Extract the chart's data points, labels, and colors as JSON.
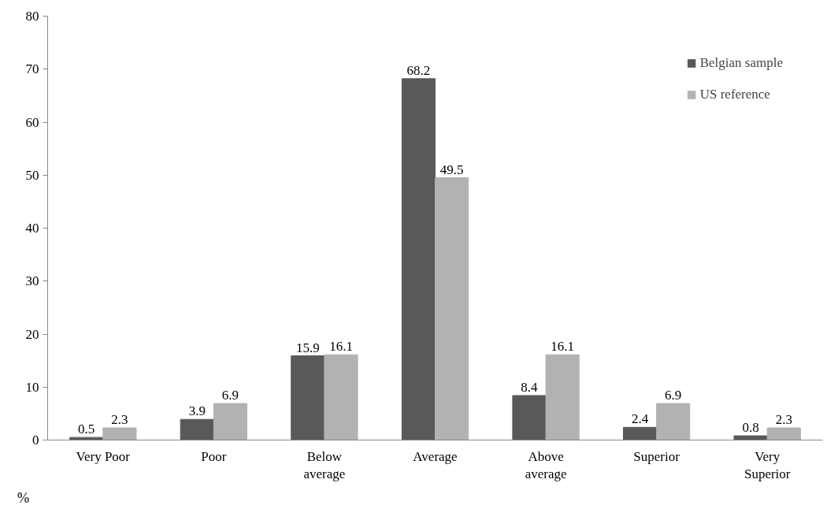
{
  "chart_data": {
    "type": "bar",
    "ylabel": "%",
    "categories": [
      "Very Poor",
      "Poor",
      "Below\naverage",
      "Average",
      "Above\naverage",
      "Superior",
      "Very\nSuperior"
    ],
    "series": [
      {
        "name": "Belgian sample",
        "color": "#595959",
        "values": [
          0.5,
          3.9,
          15.9,
          68.2,
          8.4,
          2.4,
          0.8
        ]
      },
      {
        "name": "US reference",
        "color": "#b2b2b2",
        "values": [
          2.3,
          6.9,
          16.1,
          49.5,
          16.1,
          6.9,
          2.3
        ]
      }
    ],
    "ylim": [
      0,
      80
    ],
    "yticks": [
      0,
      10,
      20,
      30,
      40,
      50,
      60,
      70,
      80
    ],
    "data_labels": true,
    "grid": false,
    "legend": "top right"
  }
}
